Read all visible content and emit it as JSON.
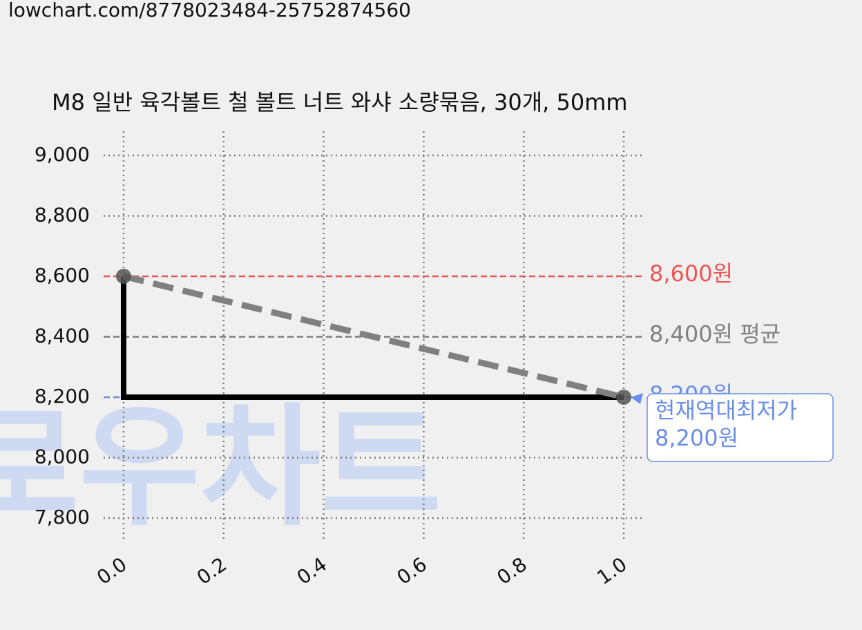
{
  "url": "lowchart.com/8778023484-25752874560",
  "chart_data": {
    "type": "line",
    "title": "M8 일반 육각볼트 철 볼트 너트 와샤 소량묶음, 30개, 50mm",
    "watermark": "로우차트",
    "x": [
      0,
      1
    ],
    "series": [
      {
        "color": "#000000",
        "values": [
          8600,
          8200
        ],
        "step": true
      },
      {
        "color": "#808080",
        "values": [
          8600,
          8200
        ],
        "dashed": true,
        "markers": true
      }
    ],
    "hlines": [
      {
        "value": 8600,
        "label": "8,600원",
        "color": "#f05454"
      },
      {
        "value": 8400,
        "label": "8,400원 평균",
        "color": "#808080"
      },
      {
        "value": 8200,
        "label": "8,200원",
        "color": "#6a8fe8"
      }
    ],
    "annotation": {
      "x": 1,
      "y": 8200,
      "lines": [
        "현재역대최저가",
        "8,200원"
      ],
      "color": "#6a8fe8"
    },
    "xlim": [
      -0.04,
      1.04
    ],
    "ylim": [
      7720,
      9080
    ],
    "xticks": [
      {
        "value": 0,
        "label": "0.0"
      },
      {
        "value": 0.2,
        "label": "0.2"
      },
      {
        "value": 0.4,
        "label": "0.4"
      },
      {
        "value": 0.6,
        "label": "0.6"
      },
      {
        "value": 0.8,
        "label": "0.8"
      },
      {
        "value": 1,
        "label": "1.0"
      }
    ],
    "yticks": [
      {
        "value": 7800,
        "label": "7,800"
      },
      {
        "value": 8000,
        "label": "8,000"
      },
      {
        "value": 8200,
        "label": "8,200"
      },
      {
        "value": 8400,
        "label": "8,400"
      },
      {
        "value": 8600,
        "label": "8,600"
      },
      {
        "value": 8800,
        "label": "8,800"
      },
      {
        "value": 9000,
        "label": "9,000"
      }
    ],
    "grid": true
  }
}
